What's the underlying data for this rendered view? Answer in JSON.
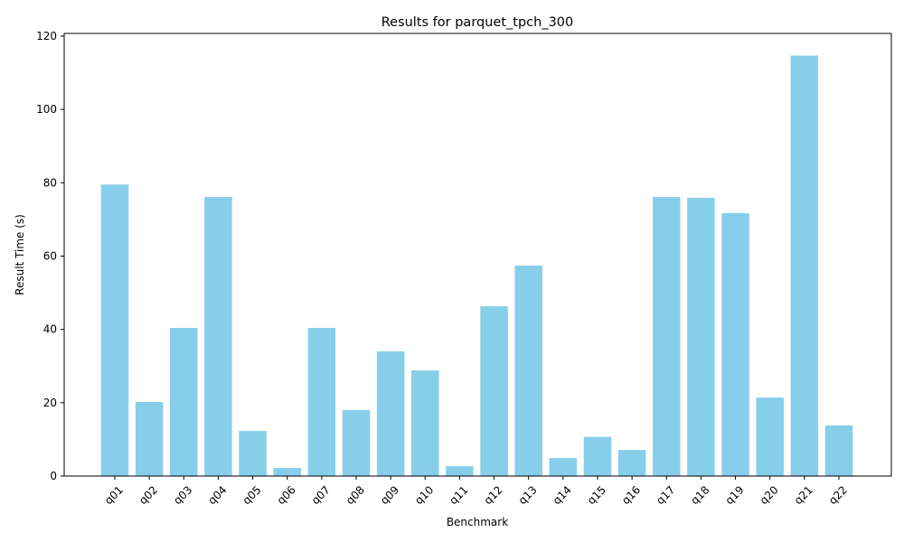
{
  "chart_data": {
    "type": "bar",
    "title": "Results for parquet_tpch_300",
    "xlabel": "Benchmark",
    "ylabel": "Result Time (s)",
    "ylim": [
      0,
      120
    ],
    "yticks": [
      0,
      20,
      40,
      60,
      80,
      100,
      120
    ],
    "grid": false,
    "bar_color": "#87CEEB",
    "categories": [
      "q01",
      "q02",
      "q03",
      "q04",
      "q05",
      "q06",
      "q07",
      "q08",
      "q09",
      "q10",
      "q11",
      "q12",
      "q13",
      "q14",
      "q15",
      "q16",
      "q17",
      "q18",
      "q19",
      "q20",
      "q21",
      "q22"
    ],
    "values": [
      79.5,
      20.2,
      40.4,
      76.1,
      12.3,
      2.2,
      40.4,
      18.0,
      34.0,
      28.8,
      2.7,
      46.3,
      57.4,
      4.9,
      10.7,
      7.1,
      76.1,
      75.9,
      71.7,
      21.4,
      114.7,
      13.8
    ]
  }
}
